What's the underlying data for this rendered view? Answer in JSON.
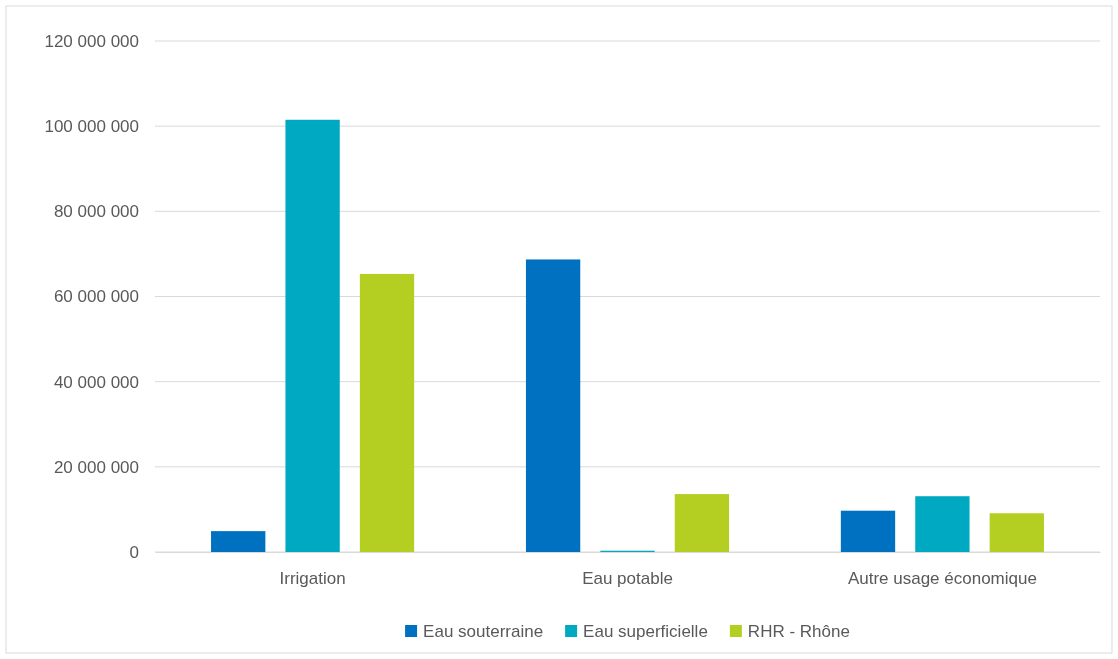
{
  "chart_data": {
    "type": "bar",
    "categories": [
      "Irrigation",
      "Eau potable",
      "Autre usage économique"
    ],
    "series": [
      {
        "name": "Eau souterraine",
        "color": "#0070c0",
        "values": [
          4900000,
          68700000,
          9700000
        ]
      },
      {
        "name": "Eau superficielle",
        "color": "#00a9c2",
        "values": [
          101500000,
          300000,
          13100000
        ]
      },
      {
        "name": "RHR - Rhône",
        "color": "#b4cf22",
        "values": [
          65300000,
          13600000,
          9100000
        ]
      }
    ],
    "ylim": [
      0,
      120000000
    ],
    "yticks": [
      {
        "value": 0,
        "label": "0"
      },
      {
        "value": 20000000,
        "label": "20 000 000"
      },
      {
        "value": 40000000,
        "label": "40 000 000"
      },
      {
        "value": 60000000,
        "label": "60 000 000"
      },
      {
        "value": 80000000,
        "label": "80 000 000"
      },
      {
        "value": 100000000,
        "label": "100 000 000"
      },
      {
        "value": 120000000,
        "label": "120 000 000"
      }
    ],
    "grid": "y",
    "legend": "bottom"
  }
}
